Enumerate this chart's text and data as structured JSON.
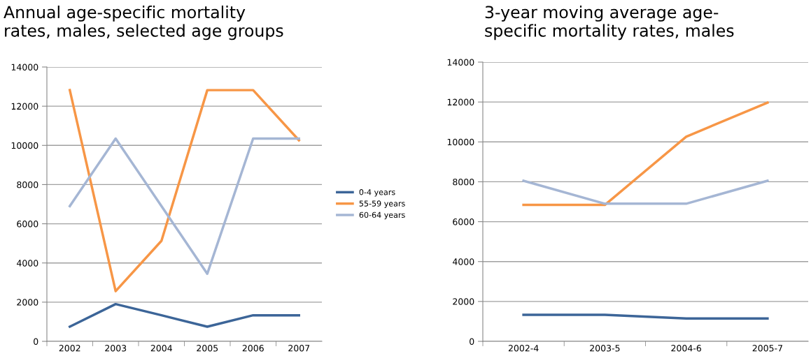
{
  "chart_data": [
    {
      "type": "line",
      "title": "Annual age-specific mortality\nrates, males, selected age groups",
      "categories": [
        "2002",
        "2003",
        "2004",
        "2005",
        "2006",
        "2007"
      ],
      "series": [
        {
          "name": "0-4 years",
          "color": "#3c6598",
          "values": [
            750,
            1900,
            1330,
            750,
            1330,
            1330
          ]
        },
        {
          "name": "55-59 years",
          "color": "#f79646",
          "values": [
            12820,
            2560,
            5130,
            12820,
            12820,
            10260
          ]
        },
        {
          "name": "60-64 years",
          "color": "#a5b6d4",
          "values": [
            6900,
            10350,
            6900,
            3450,
            10350,
            10350
          ]
        }
      ],
      "ylim": [
        0,
        14000
      ],
      "yticks": [
        0,
        2000,
        4000,
        6000,
        8000,
        10000,
        12000,
        14000
      ],
      "grid": "y",
      "legend": "right"
    },
    {
      "type": "line",
      "title": "3-year moving average age-\nspecific mortality rates, males",
      "categories": [
        "2002-4",
        "2003-5",
        "2004-6",
        "2005-7"
      ],
      "series": [
        {
          "color": "#3c6598",
          "values": [
            1330,
            1330,
            1150,
            1150
          ]
        },
        {
          "color": "#f79646",
          "values": [
            6840,
            6840,
            10260,
            11970
          ]
        },
        {
          "color": "#a5b6d4",
          "values": [
            8050,
            6900,
            6900,
            8050
          ]
        }
      ],
      "ylim": [
        0,
        14000
      ],
      "yticks": [
        0,
        2000,
        4000,
        6000,
        8000,
        10000,
        12000,
        14000
      ],
      "grid": "y"
    }
  ]
}
